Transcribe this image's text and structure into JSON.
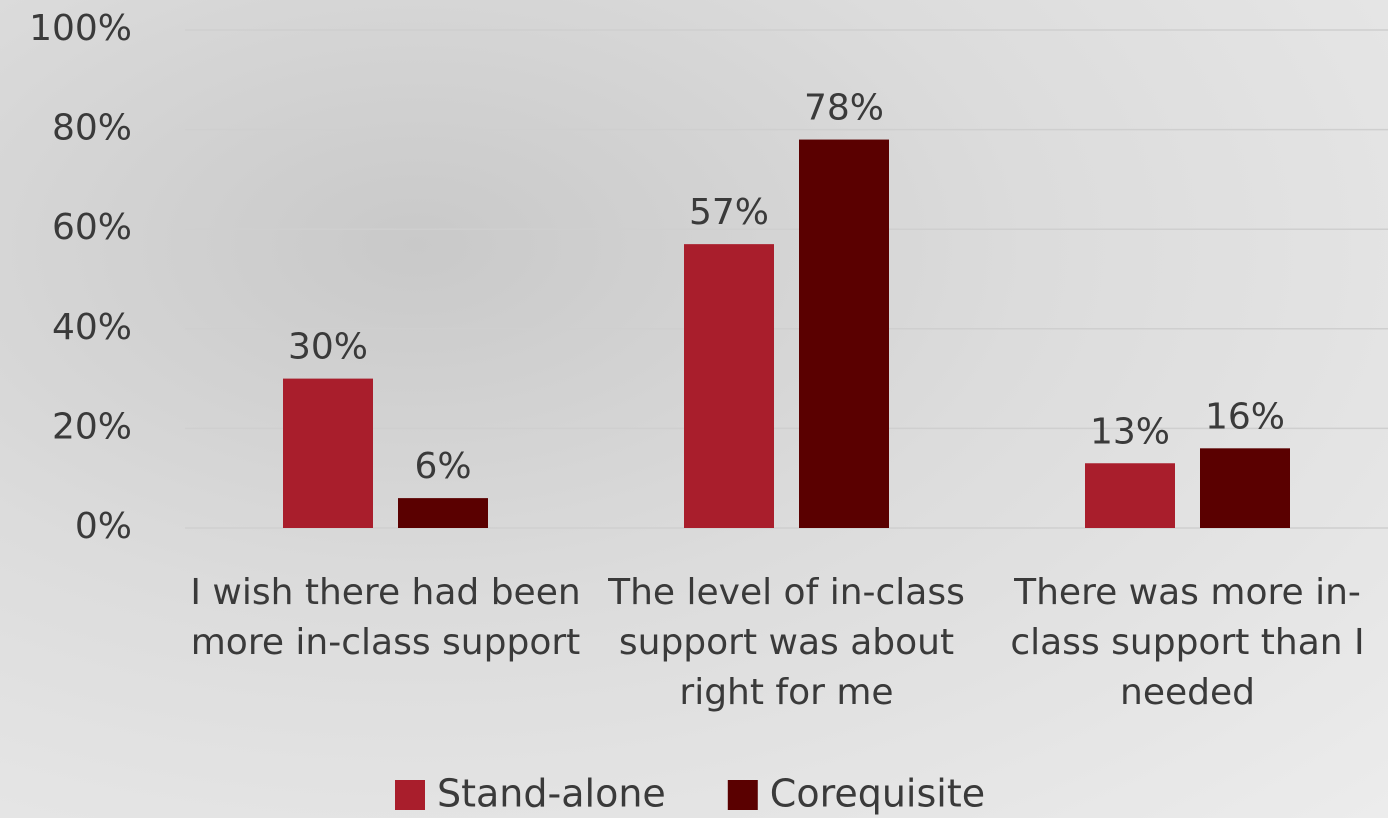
{
  "chart_data": {
    "type": "bar",
    "categories": [
      "I wish there had been more in-class support",
      "The level of in-class support was about right for me",
      "There was more in-class support than I needed"
    ],
    "series": [
      {
        "name": "Stand-alone",
        "color": "#a91e2c",
        "values": [
          30,
          57,
          13
        ],
        "value_labels": [
          "30%",
          "57%",
          "13%"
        ]
      },
      {
        "name": "Corequisite",
        "color": "#5a0000",
        "values": [
          6,
          78,
          16
        ],
        "value_labels": [
          "6%",
          "78%",
          "16%"
        ]
      }
    ],
    "ylim": [
      0,
      100
    ],
    "yticks": [
      {
        "value": 0,
        "label": "0%"
      },
      {
        "value": 20,
        "label": "20%"
      },
      {
        "value": 40,
        "label": "40%"
      },
      {
        "value": 60,
        "label": "60%"
      },
      {
        "value": 80,
        "label": "80%"
      },
      {
        "value": 100,
        "label": "100%"
      }
    ],
    "grid": true,
    "legend": "bottom"
  }
}
